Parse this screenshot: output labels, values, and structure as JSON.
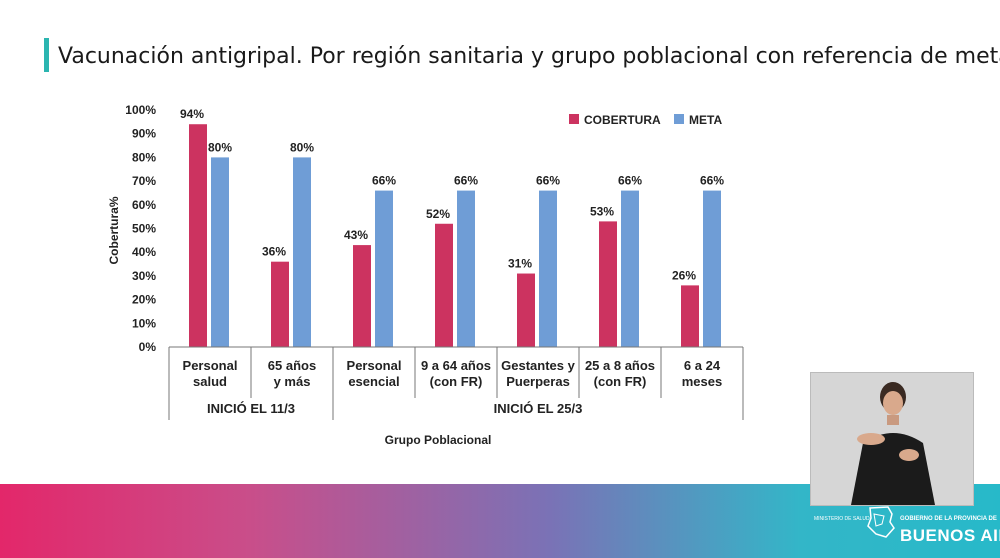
{
  "title": "Vacunación antigripal. Por región sanitaria y grupo poblacional con referencia de meta",
  "colors": {
    "accent": "#2bb5b0",
    "cobertura": "#cc3360",
    "meta": "#6f9dd6"
  },
  "chart_data": {
    "type": "bar",
    "categories": [
      "Personal salud",
      "65 años y más",
      "Personal esencial",
      "9 a 64 años (con FR)",
      "Gestantes y Puerperas",
      "25 a 8 años (con FR)",
      "6 a 24 meses"
    ],
    "category_lines": [
      [
        "Personal",
        "salud"
      ],
      [
        "65 años",
        "y más"
      ],
      [
        "Personal",
        "esencial"
      ],
      [
        "9 a 64 años",
        "(con FR)"
      ],
      [
        "Gestantes y",
        "Puerperas"
      ],
      [
        "25 a 8 años",
        "(con FR)"
      ],
      [
        "6 a 24",
        "meses"
      ]
    ],
    "series": [
      {
        "name": "COBERTURA",
        "values": [
          94,
          36,
          43,
          52,
          31,
          53,
          26
        ],
        "labels": [
          "94%",
          "36%",
          "43%",
          "52%",
          "31%",
          "53%",
          "26%"
        ]
      },
      {
        "name": "META",
        "values": [
          80,
          80,
          66,
          66,
          66,
          66,
          66
        ],
        "labels": [
          "80%",
          "80%",
          "66%",
          "66%",
          "66%",
          "66%",
          "66%"
        ]
      }
    ],
    "groups": [
      {
        "label": "INICIÓ EL 11/3",
        "categories": 2
      },
      {
        "label": "INICIÓ EL 25/3",
        "categories": 5
      }
    ],
    "yticks": [
      "0%",
      "10%",
      "20%",
      "30%",
      "40%",
      "50%",
      "60%",
      "70%",
      "80%",
      "90%",
      "100%"
    ],
    "ylim": [
      0,
      100
    ],
    "ylabel": "Cobertura%",
    "xlabel": "Grupo Poblacional",
    "legend": "top-right",
    "grid": false
  },
  "footer": {
    "ministry": "MINISTERIO DE SALUD",
    "gov_small": "GOBIERNO DE LA PROVINCIA DE",
    "gov_big": "BUENOS AIRES"
  }
}
